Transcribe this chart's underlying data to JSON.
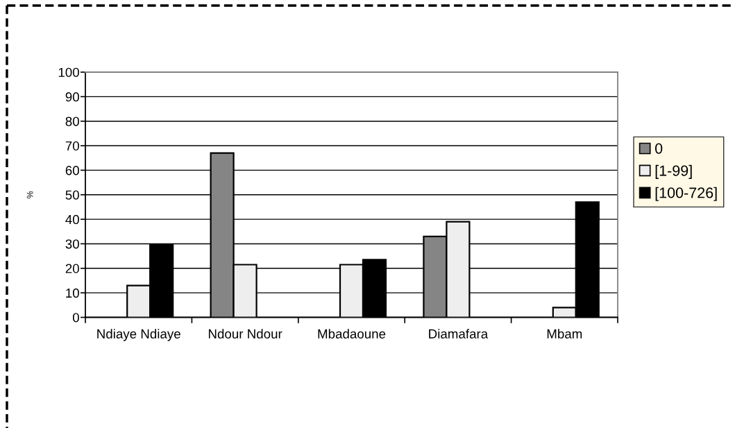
{
  "chart_data": {
    "type": "bar",
    "ylabel": "%",
    "categories": [
      "Ndiaye Ndiaye",
      "Ndour Ndour",
      "Mbadaoune",
      "Diamafara",
      "Mbam"
    ],
    "series": [
      {
        "name": "0",
        "color": "#858585",
        "values": [
          null,
          67,
          null,
          33,
          null
        ]
      },
      {
        "name": "[1-99]",
        "color": "#eeeeee",
        "values": [
          13,
          21.5,
          21.5,
          39,
          4
        ]
      },
      {
        "name": "[100-726]",
        "color": "#000000",
        "values": [
          29.5,
          null,
          23.5,
          null,
          47
        ]
      }
    ],
    "ylim": [
      0,
      100
    ],
    "yticks": [
      0,
      10,
      20,
      30,
      40,
      50,
      60,
      70,
      80,
      90,
      100
    ],
    "grid": "y",
    "legend": "right"
  }
}
